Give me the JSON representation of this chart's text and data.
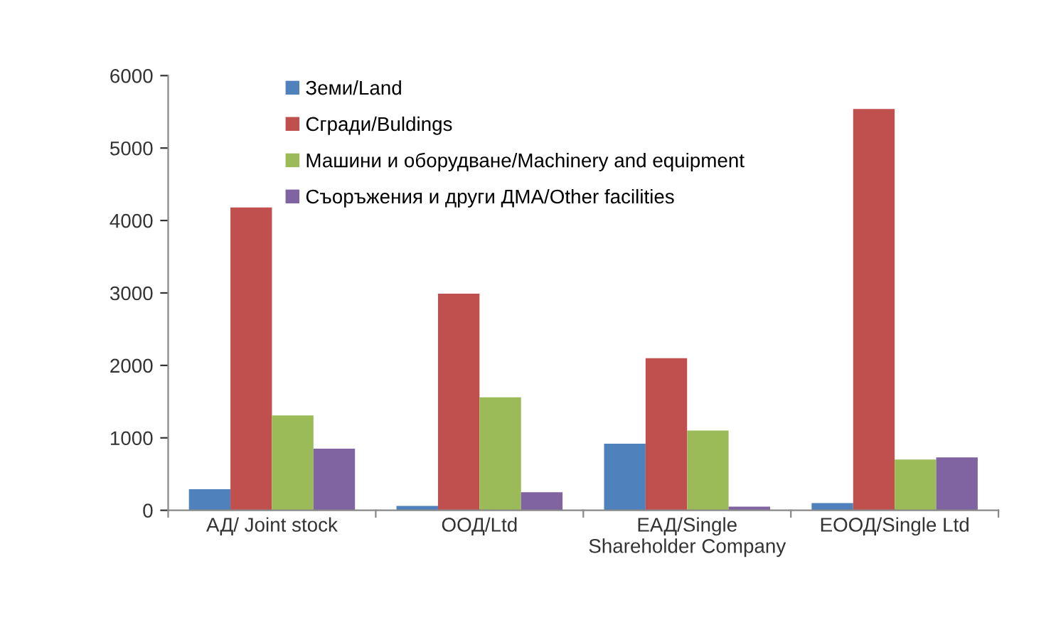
{
  "chart_data": {
    "type": "bar",
    "categories": [
      "АД/ Joint stock",
      "ООД/Ltd",
      "ЕАД/Single Shareholder Company",
      "ЕООД/Single Ltd"
    ],
    "series": [
      {
        "name": "Земи/Land",
        "color": "#4f81bd",
        "values": [
          290,
          60,
          920,
          100
        ]
      },
      {
        "name": "Сгради/Buldings",
        "color": "#c0504d",
        "values": [
          4180,
          2990,
          2100,
          5540
        ]
      },
      {
        "name": "Машини и оборудване/Machinery and equipment",
        "color": "#9bbb59",
        "values": [
          1310,
          1560,
          1100,
          700
        ]
      },
      {
        "name": "Съоръжения и други ДМА/Other facilities",
        "color": "#8064a2",
        "values": [
          850,
          250,
          50,
          730
        ]
      }
    ],
    "ylim": [
      0,
      6000
    ],
    "yticks": [
      0,
      1000,
      2000,
      3000,
      4000,
      5000,
      6000
    ],
    "grid": false,
    "legend": "top left"
  }
}
